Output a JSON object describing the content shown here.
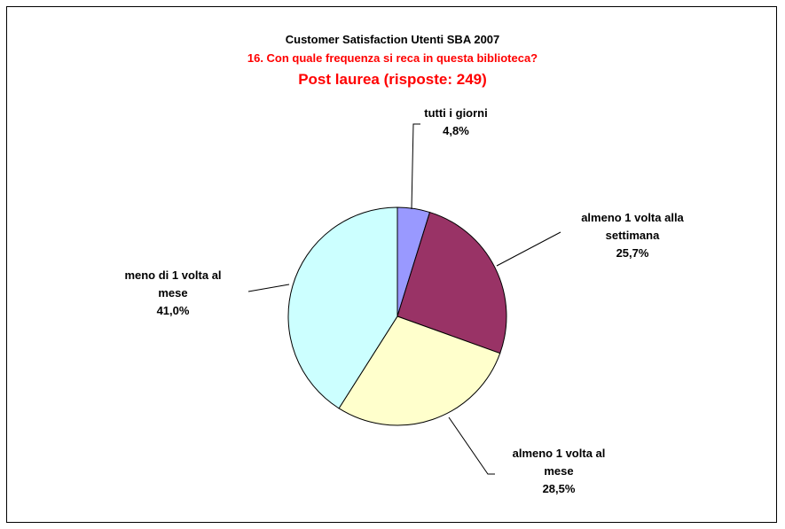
{
  "title": {
    "main": "Customer Satisfaction Utenti SBA 2007",
    "question": "16. Con quale frequenza si reca in questa biblioteca?",
    "group": "Post laurea (risposte: 249)"
  },
  "colors": {
    "title_main": "#000000",
    "title_accent": "#ff0000",
    "border": "#000000"
  },
  "chart_data": {
    "type": "pie",
    "start_angle_deg": 0,
    "direction": "clockwise",
    "slices": [
      {
        "label_lines": [
          "tutti i giorni"
        ],
        "percent_text": "4,8%",
        "value": 4.8,
        "color": "#9999ff"
      },
      {
        "label_lines": [
          "almeno 1 volta alla",
          "settimana"
        ],
        "percent_text": "25,7%",
        "value": 25.7,
        "color": "#993366"
      },
      {
        "label_lines": [
          "almeno 1 volta al",
          "mese"
        ],
        "percent_text": "28,5%",
        "value": 28.5,
        "color": "#ffffcc"
      },
      {
        "label_lines": [
          "meno di 1 volta al",
          "mese"
        ],
        "percent_text": "41,0%",
        "value": 41.0,
        "color": "#ccffff"
      }
    ]
  }
}
